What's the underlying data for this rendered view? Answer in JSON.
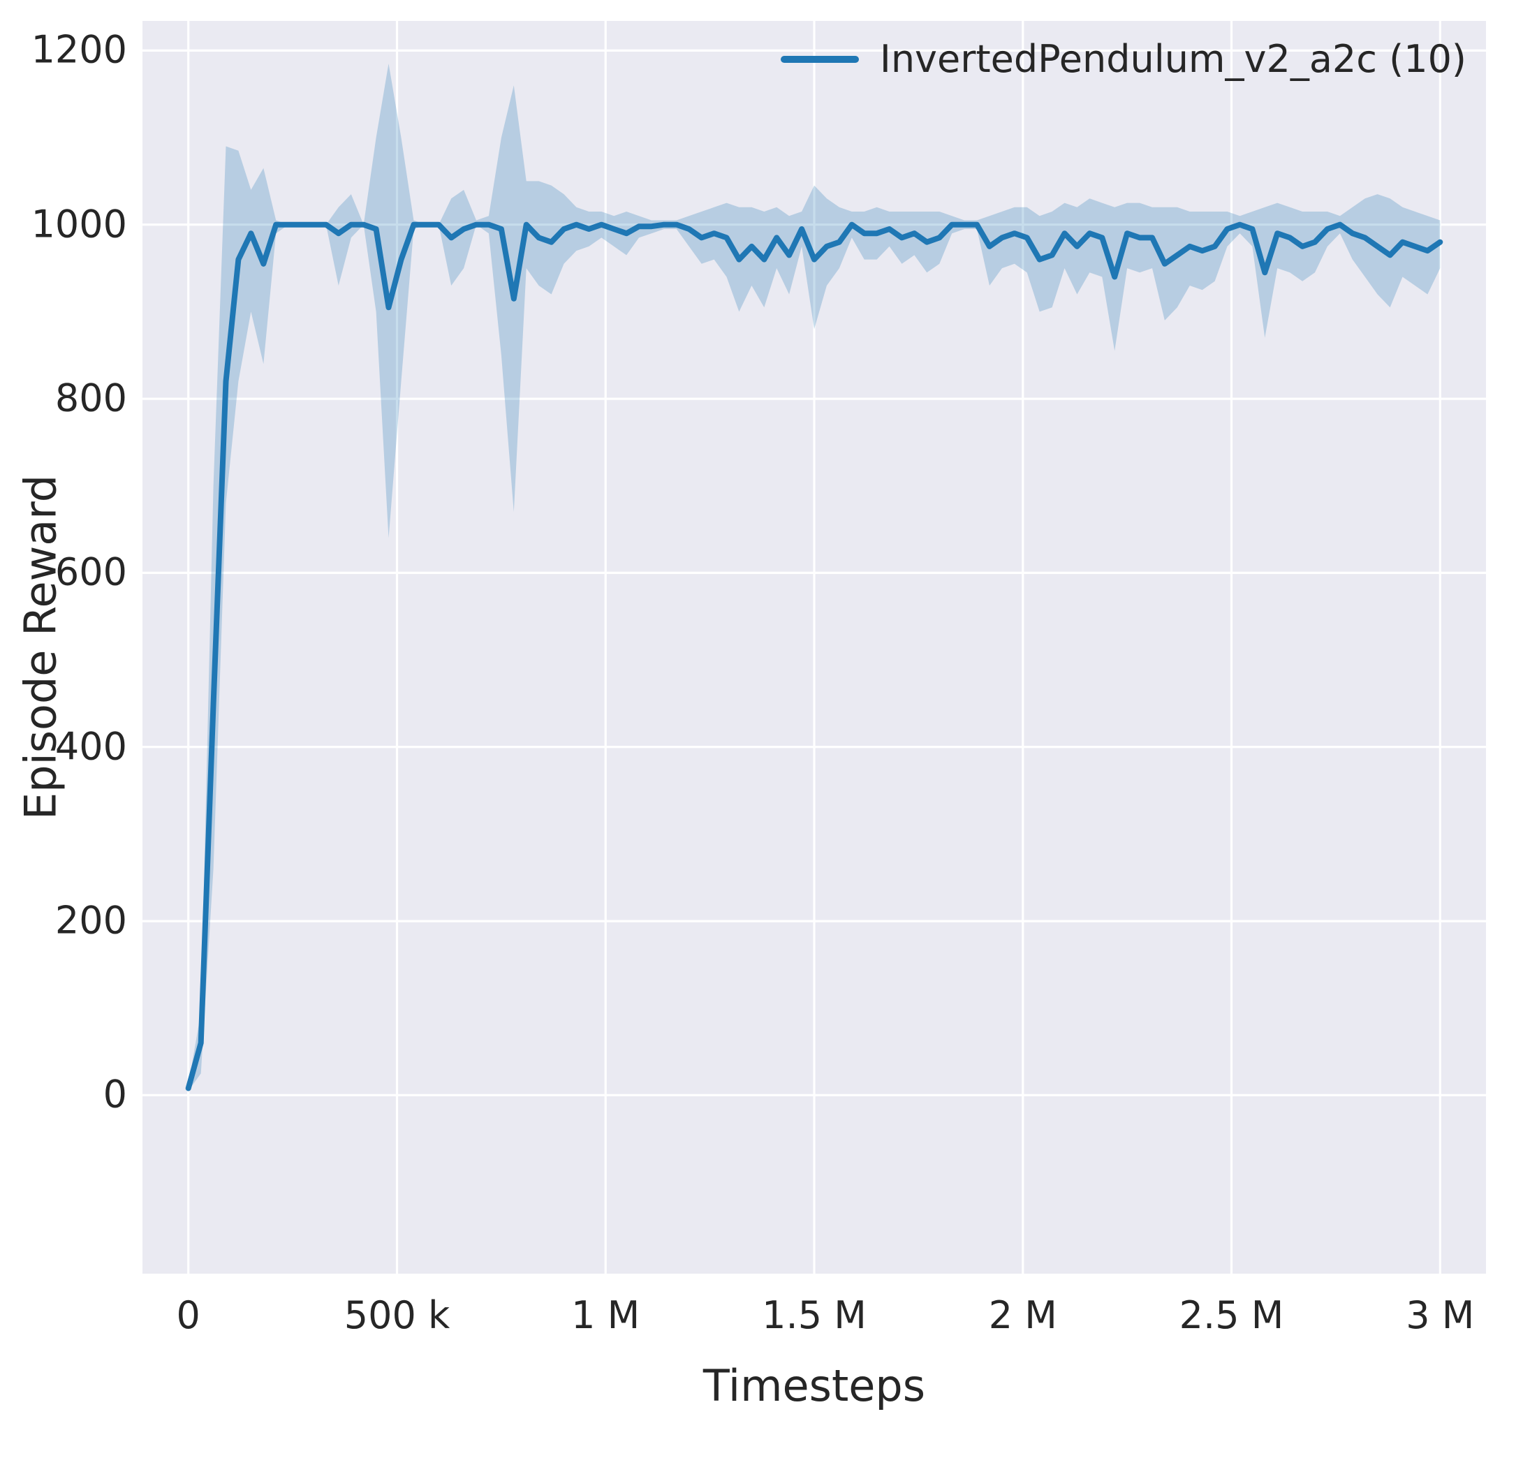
{
  "figure": {
    "background": "#ffffff",
    "plot_background": "#eaeaf2",
    "grid_color": "#ffffff",
    "text_color": "#262626"
  },
  "chart_data": {
    "type": "line",
    "title": "",
    "xlabel": "Timesteps",
    "ylabel": "Episode Reward",
    "grid": true,
    "legend_position": "upper right",
    "xlim": [
      -110000,
      3110000
    ],
    "ylim": [
      -205,
      1234
    ],
    "xticks": [
      {
        "value": 0,
        "label": "0"
      },
      {
        "value": 500000,
        "label": "500 k"
      },
      {
        "value": 1000000,
        "label": "1 M"
      },
      {
        "value": 1500000,
        "label": "1.5 M"
      },
      {
        "value": 2000000,
        "label": "2 M"
      },
      {
        "value": 2500000,
        "label": "2.5 M"
      },
      {
        "value": 3000000,
        "label": "3 M"
      }
    ],
    "yticks": [
      {
        "value": 0,
        "label": "0"
      },
      {
        "value": 200,
        "label": "200"
      },
      {
        "value": 400,
        "label": "400"
      },
      {
        "value": 600,
        "label": "600"
      },
      {
        "value": 800,
        "label": "800"
      },
      {
        "value": 1000,
        "label": "1000"
      },
      {
        "value": 1200,
        "label": "1200"
      }
    ],
    "series": [
      {
        "name": "InvertedPendulum_v2_a2c (10)",
        "color": "#1f77b4",
        "band_color": "#1f77b4",
        "band_opacity": 0.25,
        "line_width": 8,
        "x": [
          0,
          30000,
          60000,
          90000,
          120000,
          150000,
          180000,
          210000,
          240000,
          270000,
          300000,
          330000,
          360000,
          390000,
          420000,
          450000,
          480000,
          510000,
          540000,
          570000,
          600000,
          630000,
          660000,
          690000,
          720000,
          750000,
          780000,
          810000,
          840000,
          870000,
          900000,
          930000,
          960000,
          990000,
          1020000,
          1050000,
          1080000,
          1110000,
          1140000,
          1170000,
          1200000,
          1230000,
          1260000,
          1290000,
          1320000,
          1350000,
          1380000,
          1410000,
          1440000,
          1470000,
          1500000,
          1530000,
          1560000,
          1590000,
          1620000,
          1650000,
          1680000,
          1710000,
          1740000,
          1770000,
          1800000,
          1830000,
          1860000,
          1890000,
          1920000,
          1950000,
          1980000,
          2010000,
          2040000,
          2070000,
          2100000,
          2130000,
          2160000,
          2190000,
          2220000,
          2250000,
          2280000,
          2310000,
          2340000,
          2370000,
          2400000,
          2430000,
          2460000,
          2490000,
          2520000,
          2550000,
          2580000,
          2610000,
          2640000,
          2670000,
          2700000,
          2730000,
          2760000,
          2790000,
          2820000,
          2850000,
          2880000,
          2910000,
          2940000,
          2970000,
          3000000
        ],
        "mean": [
          8,
          60,
          450,
          820,
          960,
          990,
          955,
          1000,
          1000,
          1000,
          1000,
          1000,
          990,
          1000,
          1000,
          995,
          905,
          960,
          1000,
          1000,
          1000,
          985,
          995,
          1000,
          1000,
          995,
          915,
          1000,
          985,
          980,
          995,
          1000,
          995,
          1000,
          995,
          990,
          998,
          998,
          1000,
          1000,
          995,
          985,
          990,
          985,
          960,
          975,
          960,
          985,
          965,
          995,
          960,
          975,
          980,
          1000,
          990,
          990,
          995,
          985,
          990,
          980,
          985,
          1000,
          1000,
          1000,
          975,
          985,
          990,
          985,
          960,
          965,
          990,
          975,
          990,
          985,
          940,
          990,
          985,
          985,
          955,
          965,
          975,
          970,
          975,
          995,
          1000,
          995,
          945,
          990,
          985,
          975,
          980,
          995,
          1000,
          990,
          985,
          975,
          965,
          980,
          975,
          970,
          980
        ],
        "band_low": [
          5,
          25,
          260,
          680,
          820,
          900,
          840,
          990,
          1000,
          1000,
          1000,
          1000,
          930,
          985,
          1000,
          900,
          640,
          820,
          995,
          1000,
          1000,
          930,
          950,
          1000,
          990,
          850,
          670,
          950,
          930,
          920,
          955,
          970,
          975,
          985,
          975,
          965,
          985,
          990,
          995,
          995,
          975,
          955,
          960,
          940,
          900,
          930,
          905,
          950,
          920,
          975,
          880,
          930,
          950,
          985,
          960,
          960,
          975,
          955,
          965,
          945,
          955,
          990,
          995,
          995,
          930,
          950,
          955,
          945,
          900,
          905,
          950,
          920,
          945,
          940,
          855,
          950,
          945,
          950,
          890,
          905,
          930,
          925,
          935,
          975,
          990,
          975,
          870,
          950,
          945,
          935,
          945,
          975,
          990,
          960,
          940,
          920,
          905,
          940,
          930,
          920,
          950
        ],
        "band_high": [
          12,
          95,
          700,
          1090,
          1085,
          1040,
          1065,
          1005,
          1000,
          1000,
          1000,
          1000,
          1020,
          1035,
          1000,
          1100,
          1185,
          1100,
          1005,
          1000,
          1000,
          1030,
          1040,
          1005,
          1010,
          1100,
          1160,
          1050,
          1050,
          1045,
          1035,
          1020,
          1015,
          1015,
          1010,
          1015,
          1010,
          1005,
          1005,
          1005,
          1010,
          1015,
          1020,
          1025,
          1020,
          1020,
          1015,
          1020,
          1010,
          1015,
          1045,
          1030,
          1020,
          1015,
          1015,
          1020,
          1015,
          1015,
          1015,
          1015,
          1015,
          1010,
          1005,
          1005,
          1010,
          1015,
          1020,
          1020,
          1010,
          1015,
          1025,
          1020,
          1030,
          1025,
          1020,
          1025,
          1025,
          1020,
          1020,
          1020,
          1015,
          1015,
          1015,
          1015,
          1010,
          1015,
          1020,
          1025,
          1020,
          1015,
          1015,
          1015,
          1010,
          1020,
          1030,
          1035,
          1030,
          1020,
          1015,
          1010,
          1005
        ]
      }
    ]
  }
}
